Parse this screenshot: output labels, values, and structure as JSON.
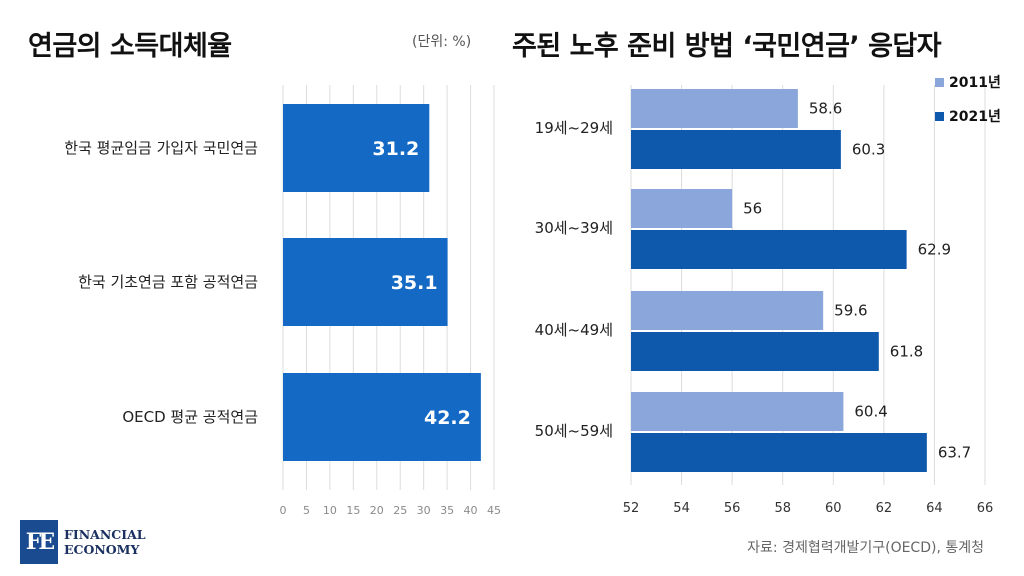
{
  "colors": {
    "left_bar": "#1469c4",
    "series_2011": "#8aa6da",
    "series_2021": "#0f59ad",
    "grid": "#dcdcdc"
  },
  "left_title": "연금의 소득대체율",
  "unit_note": "(단위: %)",
  "right_title": "주된 노후 준비 방법 ‘국민연금’ 응답자",
  "source": "자료: 경제협력개발기구(OECD), 통계청",
  "logo": {
    "mark": "FE",
    "line1": "FINANCIAL",
    "line2": "ECONOMY"
  },
  "chart_data": [
    {
      "type": "bar",
      "orientation": "horizontal",
      "title": "연금의 소득대체율",
      "unit": "(단위: %)",
      "categories": [
        "한국 평균임금 가입자 국민연금",
        "한국 기초연금 포함 공적연금",
        "OECD 평균 공적연금"
      ],
      "values": [
        31.2,
        35.1,
        42.2
      ],
      "xlim": [
        0,
        45
      ],
      "xticks": [
        0,
        5,
        10,
        15,
        20,
        25,
        30,
        35,
        40,
        45
      ],
      "grid": true
    },
    {
      "type": "bar",
      "orientation": "horizontal",
      "title": "주된 노후 준비 방법 ‘국민연금’ 응답자",
      "categories": [
        "19세~29세",
        "30세~39세",
        "40세~49세",
        "50세~59세"
      ],
      "series": [
        {
          "name": "2011년",
          "values": [
            58.6,
            56,
            59.6,
            60.4
          ]
        },
        {
          "name": "2021년",
          "values": [
            60.3,
            62.9,
            61.8,
            63.7
          ]
        }
      ],
      "xlim": [
        52,
        66
      ],
      "xticks": [
        52,
        54,
        56,
        58,
        60,
        62,
        64,
        66
      ],
      "grid": true,
      "legend": "top-right"
    }
  ]
}
